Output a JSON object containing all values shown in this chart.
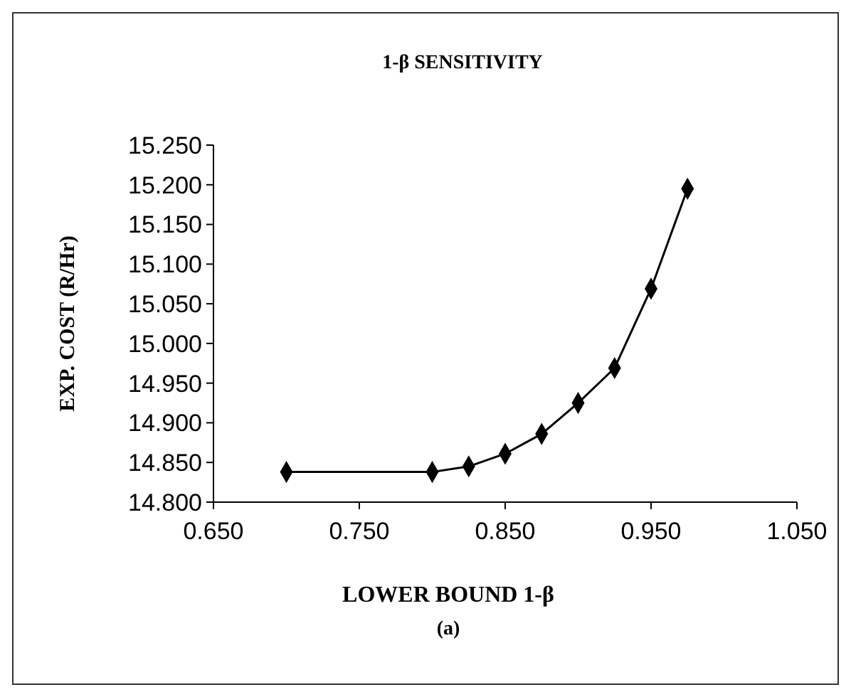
{
  "chart_data": {
    "type": "line",
    "title": "1-β  SENSITIVITY",
    "xlabel": "LOWER BOUND 1-β",
    "ylabel": "EXP. COST (R/Hr)",
    "annotations": [
      "(a)"
    ],
    "x": [
      0.7,
      0.8,
      0.825,
      0.85,
      0.875,
      0.9,
      0.925,
      0.95,
      0.975
    ],
    "series": [
      {
        "color": "#000000",
        "values": [
          14.838,
          14.838,
          14.845,
          14.861,
          14.886,
          14.925,
          14.969,
          15.069,
          15.195
        ]
      }
    ],
    "xlim": [
      0.65,
      1.05
    ],
    "xticks": [
      {
        "value": 0.65,
        "label": "0.650"
      },
      {
        "value": 0.75,
        "label": "0.750"
      },
      {
        "value": 0.85,
        "label": "0.850"
      },
      {
        "value": 0.95,
        "label": "0.950"
      },
      {
        "value": 1.05,
        "label": "1.050"
      }
    ],
    "ylim": [
      14.8,
      15.25
    ],
    "yticks": [
      {
        "value": 14.8,
        "label": "14.800"
      },
      {
        "value": 14.85,
        "label": "14.850"
      },
      {
        "value": 14.9,
        "label": "14.900"
      },
      {
        "value": 14.95,
        "label": "14.950"
      },
      {
        "value": 15.0,
        "label": "15.000"
      },
      {
        "value": 15.05,
        "label": "15.050"
      },
      {
        "value": 15.1,
        "label": "15.100"
      },
      {
        "value": 15.15,
        "label": "15.150"
      },
      {
        "value": 15.2,
        "label": "15.200"
      },
      {
        "value": 15.25,
        "label": "15.250"
      }
    ],
    "grid": false,
    "marker": "diamond",
    "line_style": "solid"
  }
}
